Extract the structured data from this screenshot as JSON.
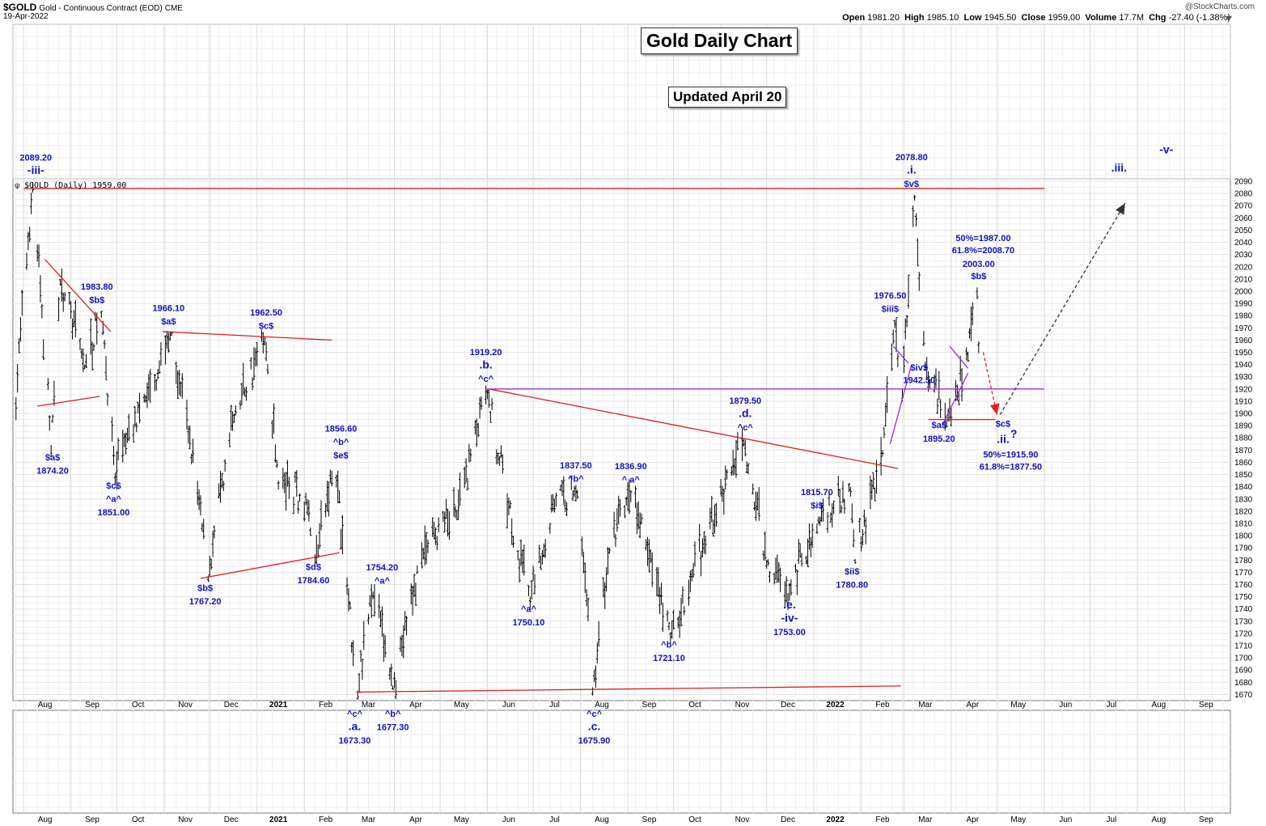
{
  "header": {
    "symbol": "$GOLD",
    "description": "Gold - Continuous Contract (EOD)",
    "exchange": "CME",
    "date": "19-Apr-2022",
    "open_label": "Open",
    "open": "1981.20",
    "high_label": "High",
    "high": "1985.10",
    "low_label": "Low",
    "low": "1945.50",
    "close_label": "Close",
    "close": "1959.00",
    "volume_label": "Volume",
    "volume": "17.7M",
    "chg_label": "Chg",
    "chg": "-27.40 (-1.38%)",
    "watermark": "@StockCharts.com"
  },
  "boxes": {
    "title": "Gold Daily Chart",
    "updated": "Updated April 20"
  },
  "chart_data": {
    "type": "bar",
    "series_label": "$GOLD (Daily) 1959.00",
    "ylim": [
      1665,
      2092
    ],
    "yticks": [
      1670,
      1680,
      1690,
      1700,
      1710,
      1720,
      1730,
      1740,
      1750,
      1760,
      1770,
      1780,
      1790,
      1800,
      1810,
      1820,
      1830,
      1840,
      1850,
      1860,
      1870,
      1880,
      1890,
      1900,
      1910,
      1920,
      1930,
      1940,
      1950,
      1960,
      1970,
      1980,
      1990,
      2000,
      2010,
      2020,
      2030,
      2040,
      2050,
      2060,
      2070,
      2080,
      2090
    ],
    "months": [
      {
        "label": "Aug",
        "d": "2020-08-01"
      },
      {
        "label": "Sep",
        "d": "2020-09-01"
      },
      {
        "label": "Oct",
        "d": "2020-10-01"
      },
      {
        "label": "Nov",
        "d": "2020-11-01"
      },
      {
        "label": "Dec",
        "d": "2020-12-01"
      },
      {
        "label": "2021",
        "d": "2021-01-01",
        "bold": true
      },
      {
        "label": "Feb",
        "d": "2021-02-01"
      },
      {
        "label": "Mar",
        "d": "2021-03-01"
      },
      {
        "label": "Apr",
        "d": "2021-04-01"
      },
      {
        "label": "May",
        "d": "2021-05-01"
      },
      {
        "label": "Jun",
        "d": "2021-06-01"
      },
      {
        "label": "Jul",
        "d": "2021-07-01"
      },
      {
        "label": "Aug",
        "d": "2021-08-01"
      },
      {
        "label": "Sep",
        "d": "2021-09-01"
      },
      {
        "label": "Oct",
        "d": "2021-10-01"
      },
      {
        "label": "Nov",
        "d": "2021-11-01"
      },
      {
        "label": "Dec",
        "d": "2021-12-01"
      },
      {
        "label": "2022",
        "d": "2022-01-01",
        "bold": true
      },
      {
        "label": "Feb",
        "d": "2022-02-01"
      },
      {
        "label": "Mar",
        "d": "2022-03-01"
      },
      {
        "label": "Apr",
        "d": "2022-04-01"
      },
      {
        "label": "May",
        "d": "2022-05-01"
      },
      {
        "label": "Jun",
        "d": "2022-06-01"
      },
      {
        "label": "Jul",
        "d": "2022-07-01"
      },
      {
        "label": "Aug",
        "d": "2022-08-01"
      },
      {
        "label": "Sep",
        "d": "2022-09-01"
      }
    ],
    "xlim": [
      "2020-07-25",
      "2022-10-01"
    ],
    "anchors": [
      [
        "2020-07-25",
        1885
      ],
      [
        "2020-08-07",
        2089.2
      ],
      [
        "2020-08-19",
        1874.2
      ],
      [
        "2020-08-25",
        2010
      ],
      [
        "2020-09-10",
        1940
      ],
      [
        "2020-09-21",
        1983.8
      ],
      [
        "2020-09-30",
        1851
      ],
      [
        "2020-10-20",
        1915
      ],
      [
        "2020-11-06",
        1966.1
      ],
      [
        "2020-11-17",
        1890
      ],
      [
        "2020-11-30",
        1767.2
      ],
      [
        "2020-12-17",
        1900
      ],
      [
        "2021-01-06",
        1962.5
      ],
      [
        "2021-01-15",
        1845
      ],
      [
        "2021-02-03",
        1830
      ],
      [
        "2021-02-08",
        1784.6
      ],
      [
        "2021-02-21",
        1856.6
      ],
      [
        "2021-03-08",
        1673.3
      ],
      [
        "2021-03-18",
        1754.2
      ],
      [
        "2021-03-31",
        1677.3
      ],
      [
        "2021-04-20",
        1790
      ],
      [
        "2021-05-12",
        1820
      ],
      [
        "2021-06-01",
        1919.2
      ],
      [
        "2021-06-18",
        1800
      ],
      [
        "2021-06-29",
        1750.1
      ],
      [
        "2021-07-15",
        1830
      ],
      [
        "2021-07-30",
        1837.5
      ],
      [
        "2021-08-09",
        1675.9
      ],
      [
        "2021-08-20",
        1790
      ],
      [
        "2021-09-03",
        1836.9
      ],
      [
        "2021-09-29",
        1721.1
      ],
      [
        "2021-10-22",
        1800
      ],
      [
        "2021-11-16",
        1879.5
      ],
      [
        "2021-12-01",
        1780
      ],
      [
        "2021-12-15",
        1753
      ],
      [
        "2022-01-05",
        1815.7
      ],
      [
        "2022-01-25",
        1840
      ],
      [
        "2022-01-28",
        1780.8
      ],
      [
        "2022-02-15",
        1870
      ],
      [
        "2022-02-23",
        1976.5
      ],
      [
        "2022-02-28",
        1920
      ],
      [
        "2022-03-08",
        2078.8
      ],
      [
        "2022-03-15",
        1942.5
      ],
      [
        "2022-03-29",
        1895.2
      ],
      [
        "2022-04-10",
        1940
      ],
      [
        "2022-04-18",
        2003
      ],
      [
        "2022-04-19",
        1959
      ]
    ],
    "last_date": "2022-04-19",
    "red_lines": [
      [
        [
          "2020-08-01",
          2084
        ],
        [
          "2022-06-01",
          2084
        ]
      ],
      [
        [
          "2020-08-15",
          2026
        ],
        [
          "2020-09-27",
          1967
        ]
      ],
      [
        [
          "2020-08-10",
          1906
        ],
        [
          "2020-09-20",
          1914
        ]
      ],
      [
        [
          "2020-10-31",
          1967
        ],
        [
          "2021-02-19",
          1960
        ]
      ],
      [
        [
          "2020-11-25",
          1765
        ],
        [
          "2021-02-24",
          1786
        ]
      ],
      [
        [
          "2021-03-07",
          1672
        ],
        [
          "2022-02-27",
          1677
        ]
      ],
      [
        [
          "2021-06-02",
          1920
        ],
        [
          "2022-02-25",
          1855
        ]
      ],
      [
        [
          "2022-03-17",
          1895
        ],
        [
          "2022-04-30",
          1895
        ]
      ]
    ],
    "purple_lines": [
      [
        [
          "2021-05-31",
          1920
        ],
        [
          "2022-06-01",
          1920
        ]
      ],
      [
        [
          "2022-02-20",
          1875
        ],
        [
          "2022-03-06",
          1940
        ]
      ],
      [
        [
          "2022-02-22",
          1955
        ],
        [
          "2022-03-04",
          1941
        ]
      ],
      [
        [
          "2022-03-26",
          1890
        ],
        [
          "2022-04-12",
          1933
        ]
      ],
      [
        [
          "2022-03-31",
          1955
        ],
        [
          "2022-04-12",
          1937
        ]
      ]
    ],
    "red_dash": [
      [
        "2022-04-22",
        1950
      ],
      [
        "2022-05-01",
        1899
      ]
    ],
    "black_dash": [
      [
        "2022-05-03",
        1899
      ],
      [
        "2022-07-24",
        2072
      ]
    ],
    "annotations": [
      {
        "d": "2020-08-09",
        "v": 2089.2,
        "lines": [
          "2089.20",
          "-iii-"
        ],
        "up": true,
        "big": [
          1
        ]
      },
      {
        "d": "2020-08-20",
        "v": 1874.2,
        "lines": [
          "$a$",
          "1874.20"
        ]
      },
      {
        "d": "2020-09-18",
        "v": 1983.8,
        "lines": [
          "1983.80",
          "$b$"
        ],
        "up": true
      },
      {
        "d": "2020-09-29",
        "v": 1851,
        "lines": [
          "$c$",
          "^a^",
          "1851.00"
        ]
      },
      {
        "d": "2020-11-04",
        "v": 1966.1,
        "lines": [
          "1966.10",
          "$a$"
        ],
        "up": true
      },
      {
        "d": "2020-11-28",
        "v": 1767.2,
        "lines": [
          "$b$",
          "1767.20"
        ]
      },
      {
        "d": "2021-01-07",
        "v": 1962.5,
        "lines": [
          "1962.50",
          "$c$"
        ],
        "up": true
      },
      {
        "d": "2021-02-07",
        "v": 1784.6,
        "lines": [
          "$d$",
          "1784.60"
        ]
      },
      {
        "d": "2021-02-25",
        "v": 1856.6,
        "lines": [
          "1856.60",
          "^b^",
          "$e$"
        ],
        "up": true
      },
      {
        "d": "2021-03-06",
        "v": 1673.3,
        "lines": [
          "^c^",
          ".a.",
          "1673.30"
        ],
        "big": [
          1
        ],
        "below_axis": true
      },
      {
        "d": "2021-03-24",
        "v": 1754.2,
        "lines": [
          "1754.20",
          "^a^"
        ],
        "up": true
      },
      {
        "d": "2021-03-31",
        "v": 1677.3,
        "lines": [
          "^b^",
          "1677.30"
        ],
        "below_axis": true
      },
      {
        "d": "2021-05-31",
        "v": 1919.2,
        "lines": [
          "1919.20",
          ".b.",
          "^c^"
        ],
        "up": true,
        "big": [
          1
        ]
      },
      {
        "d": "2021-06-28",
        "v": 1750.1,
        "lines": [
          "^a^",
          "1750.10"
        ]
      },
      {
        "d": "2021-07-29",
        "v": 1837.5,
        "lines": [
          "1837.50",
          "^b^"
        ],
        "up": true
      },
      {
        "d": "2021-08-10",
        "v": 1675.9,
        "lines": [
          "^c^",
          ".c.",
          "1675.90"
        ],
        "big": [
          1
        ],
        "below_axis": true
      },
      {
        "d": "2021-09-03",
        "v": 1836.9,
        "lines": [
          "1836.90",
          "^ a^"
        ],
        "up": true
      },
      {
        "d": "2021-09-28",
        "v": 1721.1,
        "lines": [
          "^b^",
          "1721.10"
        ]
      },
      {
        "d": "2021-11-17",
        "v": 1879.5,
        "lines": [
          "1879.50",
          ".d.",
          "^c^"
        ],
        "up": true,
        "big": [
          1
        ]
      },
      {
        "d": "2021-12-16",
        "v": 1753,
        "lines": [
          ".e.",
          "-iv-",
          "1753.00"
        ],
        "big": [
          0,
          1
        ]
      },
      {
        "d": "2022-01-03",
        "v": 1815.7,
        "lines": [
          "1815.70",
          "$i$"
        ],
        "up": true
      },
      {
        "d": "2022-01-26",
        "v": 1780.8,
        "lines": [
          "$ii$",
          "1780.80"
        ]
      },
      {
        "d": "2022-02-20",
        "v": 1976.5,
        "lines": [
          "1976.50",
          "$iii$"
        ],
        "up": true
      },
      {
        "d": "2022-03-06",
        "v": 2078.8,
        "lines": [
          "2078.80",
          ".i.",
          "$v$"
        ],
        "up": true,
        "big": [
          1
        ]
      }
    ],
    "free_labels": [
      {
        "d": "2022-03-11",
        "v": 1935,
        "text": "$iv$"
      },
      {
        "d": "2022-03-11",
        "v": 1925,
        "text": "1942.50"
      },
      {
        "d": "2022-03-24",
        "v": 1888,
        "text": "$a$"
      },
      {
        "d": "2022-03-24",
        "v": 1877,
        "text": "1895.20"
      },
      {
        "d": "2022-04-22",
        "v": 2041,
        "text": "50%=1987.00"
      },
      {
        "d": "2022-04-22",
        "v": 2031,
        "text": "61.8%=2008.70"
      },
      {
        "d": "2022-04-19",
        "v": 2020,
        "text": "2003.00"
      },
      {
        "d": "2022-04-19",
        "v": 2010,
        "text": "$b$"
      },
      {
        "d": "2022-05-05",
        "v": 1889,
        "text": "$c$"
      },
      {
        "d": "2022-05-05",
        "v": 1876,
        "text": ".ii.",
        "big": true
      },
      {
        "d": "2022-05-12",
        "v": 1880,
        "text": "?",
        "big": true
      },
      {
        "d": "2022-05-10",
        "v": 1864,
        "text": "50%=1915.90"
      },
      {
        "d": "2022-05-10",
        "v": 1854,
        "text": "61.8%=1877.50"
      },
      {
        "d": "2022-07-20",
        "v": 2098,
        "text": ".iii.",
        "big": true,
        "above": true
      },
      {
        "d": "2022-08-20",
        "v": 2113,
        "text": "-v-",
        "big": true,
        "above": true
      }
    ]
  }
}
